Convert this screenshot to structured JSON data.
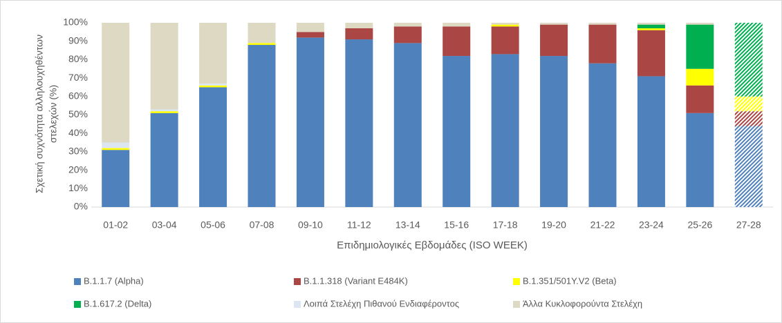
{
  "chart_data": {
    "type": "stacked_bar",
    "ylabel": [
      "Σχετική συχνότητα αλληλουχηθέντων",
      "στελεχών (%)"
    ],
    "xlabel": "Επιδημιολογικές Εβδομάδες (ISO WEEK)",
    "categories": [
      "01-02",
      "03-04",
      "05-06",
      "07-08",
      "09-10",
      "11-12",
      "13-14",
      "15-16",
      "17-18",
      "19-20",
      "21-22",
      "23-24",
      "25-26",
      "27-28"
    ],
    "hatched": [
      false,
      false,
      false,
      false,
      false,
      false,
      false,
      false,
      false,
      false,
      false,
      false,
      false,
      true
    ],
    "series": [
      {
        "name": "B.1.1.7 (Alpha)",
        "color": "#4f81bd",
        "values": [
          31,
          51,
          65,
          88,
          92,
          91,
          89,
          82,
          83,
          82,
          78,
          71,
          51,
          44
        ]
      },
      {
        "name": "B.1.1.318 (Variant E484K)",
        "color": "#aa4643",
        "values": [
          0,
          0,
          0,
          0,
          3,
          6,
          9,
          16,
          15,
          17,
          21,
          25,
          15,
          8
        ]
      },
      {
        "name": "B.1.351/501Y.V2 (Beta)",
        "color": "#ffff00",
        "values": [
          1,
          1,
          1,
          1,
          0,
          0,
          0,
          0,
          1,
          0,
          0,
          1,
          9,
          8
        ]
      },
      {
        "name": "B.1.617.2 (Delta)",
        "color": "#00b050",
        "values": [
          0,
          0,
          0,
          0,
          0,
          0,
          0,
          0,
          0,
          0,
          0,
          2,
          24,
          40
        ]
      },
      {
        "name": "Λοιπά Στελέχη Πιθανού Ενδιαφέροντος",
        "color": "#dce6f2",
        "values": [
          3,
          1,
          1,
          0,
          0,
          0,
          0,
          0,
          0,
          0,
          0,
          0,
          0,
          0
        ]
      },
      {
        "name": "Άλλα Κυκλοφορούντα Στελέχη",
        "color": "#ddd9c3",
        "values": [
          65,
          47,
          33,
          11,
          5,
          3,
          2,
          2,
          1,
          1,
          1,
          1,
          1,
          0
        ]
      }
    ],
    "ylim": [
      0,
      100
    ],
    "yticks": [
      {
        "value": 0,
        "label": "0%"
      },
      {
        "value": 10,
        "label": "10%"
      },
      {
        "value": 20,
        "label": "20%"
      },
      {
        "value": 30,
        "label": "30%"
      },
      {
        "value": 40,
        "label": "40%"
      },
      {
        "value": 50,
        "label": "50%"
      },
      {
        "value": 60,
        "label": "60%"
      },
      {
        "value": 70,
        "label": "70%"
      },
      {
        "value": 80,
        "label": "80%"
      },
      {
        "value": 90,
        "label": "90%"
      },
      {
        "value": 100,
        "label": "100%"
      }
    ],
    "grid": false
  }
}
